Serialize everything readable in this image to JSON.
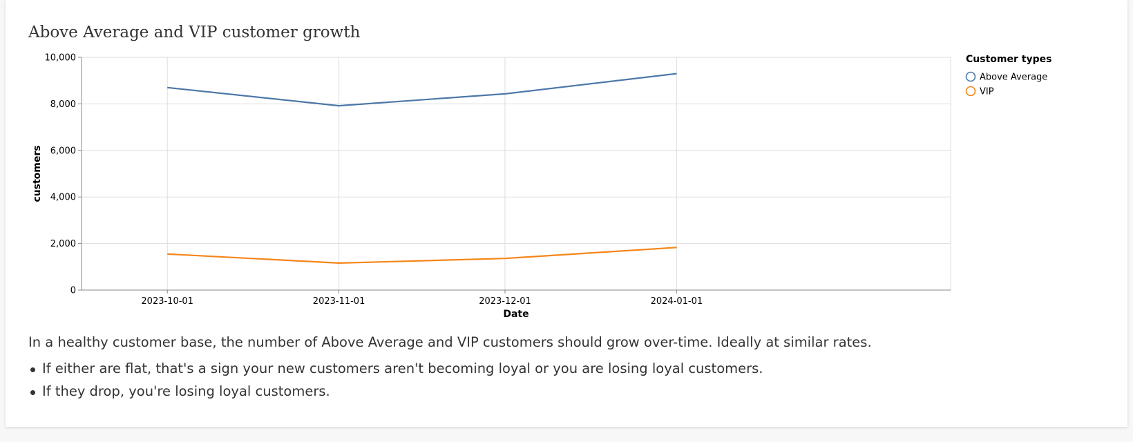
{
  "chart_data": {
    "type": "line",
    "title": "Above Average and VIP customer growth",
    "xlabel": "Date",
    "ylabel": "customers",
    "x": [
      "2023-10-01",
      "2023-11-01",
      "2023-12-01",
      "2024-01-01"
    ],
    "ylim": [
      0,
      10000
    ],
    "yticks": [
      0,
      2000,
      4000,
      6000,
      8000,
      10000
    ],
    "ytick_labels": [
      "0",
      "2,000",
      "4,000",
      "6,000",
      "8,000",
      "10,000"
    ],
    "grid": true,
    "legend": {
      "title": "Customer types",
      "placement": "right"
    },
    "series": [
      {
        "name": "Above Average",
        "color": "#4c78a8",
        "values": [
          8700,
          7920,
          8430,
          9300
        ]
      },
      {
        "name": "VIP",
        "color": "#f58518",
        "values": [
          1550,
          1160,
          1360,
          1830
        ]
      }
    ]
  },
  "description": "In a healthy customer base, the number of Above Average and VIP customers should grow over-time. Ideally at similar rates.",
  "bullets": [
    "If either are flat, that's a sign your new customers aren't becoming loyal or you are losing loyal customers.",
    "If they drop, you're losing loyal customers."
  ]
}
